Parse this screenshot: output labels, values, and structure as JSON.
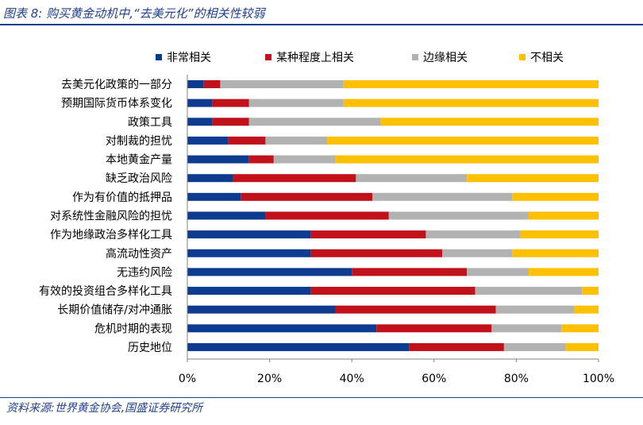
{
  "header": {
    "title": "图表 8:  购买黄金动机中,“去美元化”的相关性较弱"
  },
  "footer": {
    "source": "资料来源:世界黄金协会,国盛证券研究所"
  },
  "colors": {
    "series": [
      "#0d3b8f",
      "#c1121c",
      "#b2b2b2",
      "#ffc000"
    ],
    "rule": "#1f3f8c"
  },
  "chart_data": {
    "type": "bar",
    "orientation": "horizontal",
    "stacked": true,
    "percent": true,
    "categories": [
      "去美元化政策的一部分",
      "预期国际货币体系变化",
      "政策工具",
      "对制裁的担忧",
      "本地黄金产量",
      "缺乏政治风险",
      "作为有价值的抵押品",
      "对系统性金融风险的担忧",
      "作为地缘政治多样化工具",
      "高流动性资产",
      "无违约风险",
      "有效的投资组合多样化工具",
      "长期价值储存/对冲通胀",
      "危机时期的表现",
      "历史地位"
    ],
    "series": [
      {
        "name": "非常相关",
        "values": [
          4,
          6,
          6,
          10,
          15,
          11,
          13,
          19,
          30,
          30,
          40,
          30,
          36,
          46,
          54
        ]
      },
      {
        "name": "某种程度上相关",
        "values": [
          4,
          9,
          9,
          9,
          6,
          30,
          32,
          30,
          28,
          32,
          28,
          40,
          39,
          28,
          23
        ]
      },
      {
        "name": "边缘相关",
        "values": [
          30,
          23,
          32,
          15,
          15,
          27,
          34,
          34,
          23,
          17,
          15,
          26,
          19,
          17,
          15
        ]
      },
      {
        "name": "不相关",
        "values": [
          62,
          62,
          53,
          66,
          64,
          32,
          21,
          17,
          19,
          21,
          17,
          4,
          6,
          9,
          8
        ]
      }
    ],
    "x_ticks": [
      "0%",
      "20%",
      "40%",
      "60%",
      "80%",
      "100%"
    ],
    "xlim": [
      0,
      100
    ],
    "legend_position": "top",
    "grid": false
  }
}
